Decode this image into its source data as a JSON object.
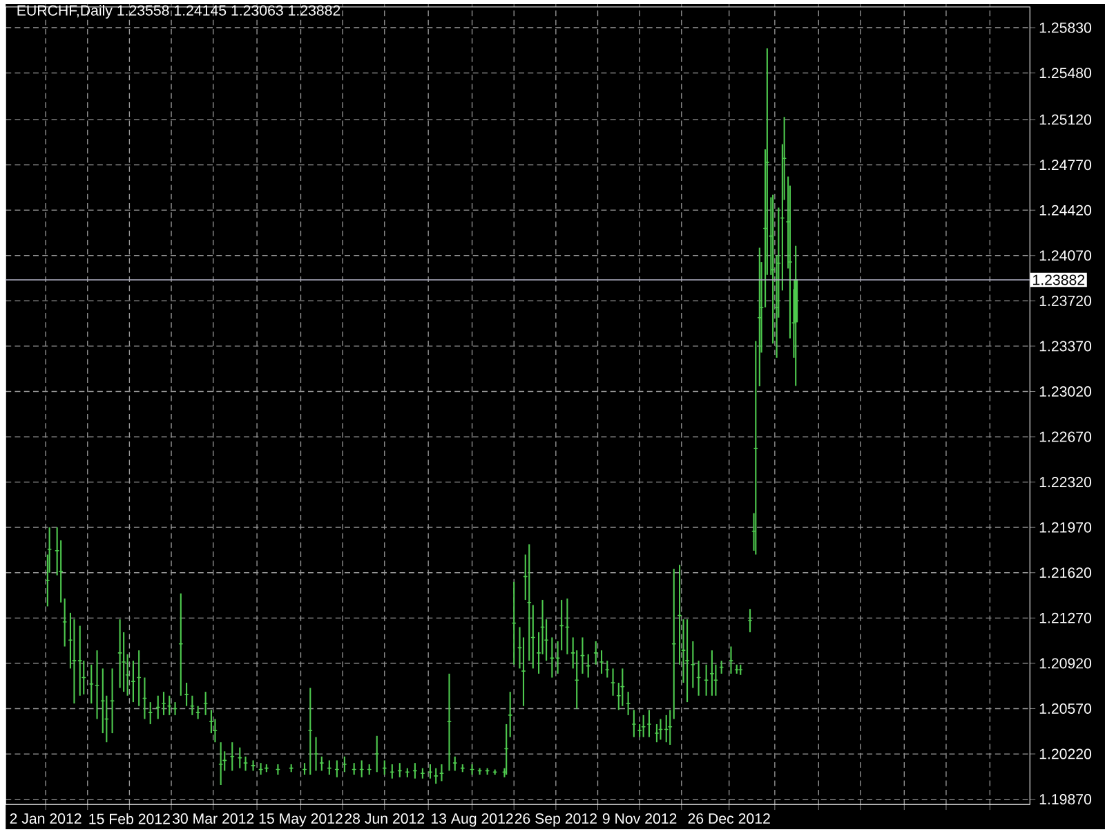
{
  "chart_data": {
    "type": "candlestick",
    "title": "EURCHF,Daily 1.23558 1.24145 1.23063 1.23882",
    "color": "#4ec94e",
    "x": [
      "2012-01-03",
      "2012-01-04",
      "2012-01-08",
      "2012-01-10",
      "2012-01-12",
      "2012-01-15",
      "2012-01-17",
      "2012-01-20",
      "2012-01-22",
      "2012-01-26",
      "2012-01-29",
      "2012-02-01",
      "2012-02-03",
      "2012-02-06",
      "2012-02-10",
      "2012-02-12",
      "2012-02-14",
      "2012-02-17",
      "2012-02-20",
      "2012-02-23",
      "2012-02-26",
      "2012-03-01",
      "2012-03-04",
      "2012-03-07",
      "2012-03-10",
      "2012-03-13",
      "2012-03-16",
      "2012-03-19",
      "2012-03-22",
      "2012-03-26",
      "2012-03-29",
      "2012-03-31",
      "2012-04-03",
      "2012-04-05",
      "2012-04-09",
      "2012-04-13",
      "2012-04-16",
      "2012-04-20",
      "2012-04-24",
      "2012-04-27",
      "2012-05-03",
      "2012-05-10",
      "2012-05-17",
      "2012-05-20",
      "2012-05-23",
      "2012-05-26",
      "2012-05-30",
      "2012-06-03",
      "2012-06-07",
      "2012-06-12",
      "2012-06-16",
      "2012-06-20",
      "2012-06-24",
      "2012-06-28",
      "2012-07-02",
      "2012-07-06",
      "2012-07-10",
      "2012-07-14",
      "2012-07-18",
      "2012-07-22",
      "2012-07-25",
      "2012-07-28",
      "2012-08-01",
      "2012-08-04",
      "2012-08-08",
      "2012-08-13",
      "2012-08-17",
      "2012-08-21",
      "2012-08-25",
      "2012-08-30",
      "2012-08-31",
      "2012-09-02",
      "2012-09-04",
      "2012-09-07",
      "2012-09-09",
      "2012-09-10",
      "2012-09-12",
      "2012-09-14",
      "2012-09-17",
      "2012-09-19",
      "2012-09-21",
      "2012-09-24",
      "2012-09-27",
      "2012-09-29",
      "2012-10-02",
      "2012-10-05",
      "2012-10-07",
      "2012-10-10",
      "2012-10-13",
      "2012-10-17",
      "2012-10-20",
      "2012-10-23",
      "2012-10-26",
      "2012-10-29",
      "2012-10-31",
      "2012-11-03",
      "2012-11-06",
      "2012-11-09",
      "2012-11-11",
      "2012-11-14",
      "2012-11-18",
      "2012-11-20",
      "2012-11-23",
      "2012-11-25",
      "2012-11-27",
      "2012-11-30",
      "2012-12-02",
      "2012-12-04",
      "2012-12-07",
      "2012-12-10",
      "2012-12-14",
      "2012-12-17",
      "2012-12-19",
      "2012-12-22",
      "2012-12-27",
      "2012-12-30",
      "2013-01-01",
      "2013-01-06",
      "2013-01-08",
      "2013-01-09",
      "2013-01-11",
      "2013-01-12",
      "2013-01-14",
      "2013-01-15",
      "2013-01-17",
      "2013-01-18",
      "2013-01-20",
      "2013-01-21",
      "2013-01-23",
      "2013-01-24",
      "2013-01-26",
      "2013-01-27",
      "2013-01-29",
      "2013-01-30"
    ],
    "ohlc": [
      [
        1.2156,
        1.2176,
        1.2136,
        1.2156
      ],
      [
        1.218,
        1.2197,
        1.2162,
        1.218
      ],
      [
        1.2179,
        1.2197,
        1.216,
        1.2179
      ],
      [
        1.2163,
        1.2187,
        1.2139,
        1.2163
      ],
      [
        1.2124,
        1.2142,
        1.2105,
        1.2124
      ],
      [
        1.211,
        1.2131,
        1.2088,
        1.211
      ],
      [
        1.2094,
        1.2126,
        1.2061,
        1.2094
      ],
      [
        1.2094,
        1.2121,
        1.2067,
        1.2094
      ],
      [
        1.2081,
        1.2094,
        1.2068,
        1.2081
      ],
      [
        1.2076,
        1.2091,
        1.2061,
        1.2076
      ],
      [
        1.2075,
        1.2102,
        1.2049,
        1.2075
      ],
      [
        1.2063,
        1.2088,
        1.2038,
        1.2063
      ],
      [
        1.2049,
        1.2067,
        1.2031,
        1.2049
      ],
      [
        1.2063,
        1.2088,
        1.2038,
        1.2063
      ],
      [
        1.21,
        1.2126,
        1.2073,
        1.21
      ],
      [
        1.2093,
        1.2116,
        1.207,
        1.2093
      ],
      [
        1.2083,
        1.2099,
        1.2067,
        1.2083
      ],
      [
        1.2078,
        1.2094,
        1.2062,
        1.2078
      ],
      [
        1.2081,
        1.2102,
        1.2059,
        1.2081
      ],
      [
        1.2065,
        1.2081,
        1.2049,
        1.2065
      ],
      [
        1.2054,
        1.2062,
        1.2045,
        1.2054
      ],
      [
        1.2058,
        1.2067,
        1.2049,
        1.2058
      ],
      [
        1.2061,
        1.207,
        1.2052,
        1.2061
      ],
      [
        1.2059,
        1.2067,
        1.2052,
        1.2059
      ],
      [
        1.2057,
        1.2062,
        1.2052,
        1.2057
      ],
      [
        1.2107,
        1.2146,
        1.2067,
        1.2107
      ],
      [
        1.2068,
        1.2077,
        1.2059,
        1.2068
      ],
      [
        1.2059,
        1.2067,
        1.2052,
        1.2059
      ],
      [
        1.2054,
        1.2059,
        1.2049,
        1.2054
      ],
      [
        1.2061,
        1.207,
        1.2052,
        1.2061
      ],
      [
        1.2047,
        1.2056,
        1.2038,
        1.2047
      ],
      [
        1.204,
        1.2049,
        1.2031,
        1.204
      ],
      [
        1.2014,
        1.2031,
        1.1998,
        1.2014
      ],
      [
        1.2017,
        1.2024,
        1.2009,
        1.2017
      ],
      [
        1.202,
        1.2031,
        1.2009,
        1.202
      ],
      [
        1.2019,
        1.2027,
        1.2011,
        1.2019
      ],
      [
        1.2015,
        1.202,
        1.2009,
        1.2015
      ],
      [
        1.2013,
        1.2017,
        1.2009,
        1.2013
      ],
      [
        1.201,
        1.2015,
        1.2006,
        1.201
      ],
      [
        1.2011,
        1.2014,
        1.2008,
        1.2011
      ],
      [
        1.201,
        1.2014,
        1.2006,
        1.201
      ],
      [
        1.2011,
        1.2014,
        1.2008,
        1.2011
      ],
      [
        1.201,
        1.2015,
        1.2006,
        1.201
      ],
      [
        1.204,
        1.2073,
        1.2006,
        1.204
      ],
      [
        1.2022,
        1.2035,
        1.2009,
        1.2022
      ],
      [
        1.2015,
        1.202,
        1.2009,
        1.2015
      ],
      [
        1.2011,
        1.2017,
        1.2006,
        1.2011
      ],
      [
        1.201,
        1.2017,
        1.2004,
        1.201
      ],
      [
        1.2014,
        1.202,
        1.2008,
        1.2014
      ],
      [
        1.201,
        1.2015,
        1.2006,
        1.201
      ],
      [
        1.201,
        1.2017,
        1.2004,
        1.201
      ],
      [
        1.201,
        1.2014,
        1.2006,
        1.201
      ],
      [
        1.2022,
        1.2036,
        1.2008,
        1.2022
      ],
      [
        1.2011,
        1.2017,
        1.2006,
        1.2011
      ],
      [
        1.2008,
        1.2014,
        1.2003,
        1.2008
      ],
      [
        1.2009,
        1.2015,
        1.2004,
        1.2009
      ],
      [
        1.2008,
        1.2011,
        1.2004,
        1.2008
      ],
      [
        1.2009,
        1.2015,
        1.2003,
        1.2009
      ],
      [
        1.2007,
        1.2011,
        1.2003,
        1.2007
      ],
      [
        1.2008,
        1.2014,
        1.2003,
        1.2008
      ],
      [
        1.2005,
        1.2011,
        1.1999,
        1.2005
      ],
      [
        1.2007,
        1.2014,
        1.2001,
        1.2007
      ],
      [
        1.2047,
        1.2084,
        1.2009,
        1.2047
      ],
      [
        1.2015,
        1.202,
        1.2009,
        1.2015
      ],
      [
        1.2011,
        1.2014,
        1.2008,
        1.2011
      ],
      [
        1.201,
        1.2014,
        1.2006,
        1.201
      ],
      [
        1.2009,
        1.2011,
        1.2006,
        1.2009
      ],
      [
        1.2009,
        1.2011,
        1.2006,
        1.2009
      ],
      [
        1.2008,
        1.201,
        1.2006,
        1.2008
      ],
      [
        1.2008,
        1.2011,
        1.2004,
        1.2008
      ],
      [
        1.2026,
        1.2045,
        1.2006,
        1.2026
      ],
      [
        1.2052,
        1.207,
        1.2035,
        1.2052
      ],
      [
        1.2123,
        1.2155,
        1.2091,
        1.2123
      ],
      [
        1.2104,
        1.212,
        1.2088,
        1.2104
      ],
      [
        1.2086,
        1.2112,
        1.2059,
        1.2086
      ],
      [
        1.2159,
        1.2176,
        1.2141,
        1.2159
      ],
      [
        1.2139,
        1.2184,
        1.2094,
        1.2139
      ],
      [
        1.2112,
        1.2137,
        1.2088,
        1.2112
      ],
      [
        1.21,
        1.2116,
        1.2084,
        1.21
      ],
      [
        1.212,
        1.2141,
        1.2099,
        1.212
      ],
      [
        1.211,
        1.2126,
        1.2094,
        1.211
      ],
      [
        1.2096,
        1.2112,
        1.2081,
        1.2096
      ],
      [
        1.2096,
        1.2109,
        1.2084,
        1.2096
      ],
      [
        1.2121,
        1.2141,
        1.2102,
        1.2121
      ],
      [
        1.212,
        1.2142,
        1.2099,
        1.212
      ],
      [
        1.21,
        1.2112,
        1.2088,
        1.21
      ],
      [
        1.2079,
        1.2102,
        1.2057,
        1.2079
      ],
      [
        1.2098,
        1.2112,
        1.2084,
        1.2098
      ],
      [
        1.209,
        1.2099,
        1.2081,
        1.209
      ],
      [
        1.21,
        1.2109,
        1.2091,
        1.21
      ],
      [
        1.2093,
        1.2102,
        1.2084,
        1.2093
      ],
      [
        1.2087,
        1.2094,
        1.2081,
        1.2087
      ],
      [
        1.2077,
        1.2088,
        1.2067,
        1.2077
      ],
      [
        1.2067,
        1.2077,
        1.2056,
        1.2067
      ],
      [
        1.2074,
        1.2088,
        1.2059,
        1.2074
      ],
      [
        1.2061,
        1.207,
        1.2052,
        1.2061
      ],
      [
        1.2045,
        1.2056,
        1.2035,
        1.2045
      ],
      [
        1.204,
        1.2045,
        1.2035,
        1.204
      ],
      [
        1.2043,
        1.2052,
        1.2035,
        1.2043
      ],
      [
        1.2045,
        1.2056,
        1.2035,
        1.2045
      ],
      [
        1.2038,
        1.2045,
        1.2031,
        1.2038
      ],
      [
        1.2041,
        1.2049,
        1.2033,
        1.2041
      ],
      [
        1.2041,
        1.2052,
        1.2031,
        1.2041
      ],
      [
        1.2043,
        1.2056,
        1.2029,
        1.2043
      ],
      [
        1.2107,
        1.2165,
        1.2049,
        1.2107
      ],
      [
        1.2129,
        1.2168,
        1.2091,
        1.2129
      ],
      [
        1.2102,
        1.2126,
        1.2077,
        1.2102
      ],
      [
        1.2094,
        1.2126,
        1.2062,
        1.2094
      ],
      [
        1.2091,
        1.2109,
        1.2073,
        1.2091
      ],
      [
        1.2081,
        1.2094,
        1.2067,
        1.2081
      ],
      [
        1.2079,
        1.2091,
        1.2067,
        1.2079
      ],
      [
        1.2084,
        1.2102,
        1.2067,
        1.2084
      ],
      [
        1.2079,
        1.2091,
        1.2067,
        1.2079
      ],
      [
        1.2089,
        1.2094,
        1.2084,
        1.2089
      ],
      [
        1.2094,
        1.2105,
        1.2084,
        1.2094
      ],
      [
        1.2087,
        1.2091,
        1.2084,
        1.2087
      ],
      [
        1.2087,
        1.2091,
        1.2083,
        1.2087
      ],
      [
        1.2125,
        1.2134,
        1.2116,
        1.2125
      ],
      [
        1.2194,
        1.2208,
        1.2179,
        1.2194
      ],
      [
        1.2258,
        1.2341,
        1.2176,
        1.2258
      ],
      [
        1.2359,
        1.2413,
        1.2306,
        1.2359
      ],
      [
        1.2367,
        1.2402,
        1.2332,
        1.2367
      ],
      [
        1.2428,
        1.2489,
        1.2367,
        1.2428
      ],
      [
        1.2479,
        1.2567,
        1.2392,
        1.2479
      ],
      [
        1.2422,
        1.2452,
        1.2392,
        1.2422
      ],
      [
        1.2396,
        1.2454,
        1.2339,
        1.2396
      ],
      [
        1.2367,
        1.2407,
        1.2328,
        1.2367
      ],
      [
        1.2401,
        1.2444,
        1.2359,
        1.2401
      ],
      [
        1.2436,
        1.2493,
        1.238,
        1.2436
      ],
      [
        1.2482,
        1.2514,
        1.245,
        1.2482
      ],
      [
        1.2433,
        1.2468,
        1.2397,
        1.2433
      ],
      [
        1.2402,
        1.2461,
        1.2343,
        1.2402
      ],
      [
        1.2355,
        1.2381,
        1.2328,
        1.2355
      ],
      [
        1.23558,
        1.24145,
        1.23063,
        1.23882
      ]
    ],
    "xlim": [
      "2011-12-12",
      "2013-06-02"
    ],
    "xticks": [
      {
        "value": "2012-01-02",
        "label": "2 Jan 2012"
      },
      {
        "value": "2012-01-24",
        "label": null
      },
      {
        "value": "2012-02-15",
        "label": "15 Feb 2012"
      },
      {
        "value": "2012-03-08",
        "label": null
      },
      {
        "value": "2012-03-30",
        "label": "30 Mar 2012"
      },
      {
        "value": "2012-04-22",
        "label": null
      },
      {
        "value": "2012-05-15",
        "label": "15 May 2012"
      },
      {
        "value": "2012-06-06",
        "label": null
      },
      {
        "value": "2012-06-28",
        "label": "28 Jun 2012"
      },
      {
        "value": "2012-07-21",
        "label": null
      },
      {
        "value": "2012-08-13",
        "label": "13 Aug 2012"
      },
      {
        "value": "2012-09-04",
        "label": null
      },
      {
        "value": "2012-09-26",
        "label": "26 Sep 2012"
      },
      {
        "value": "2012-10-18",
        "label": null
      },
      {
        "value": "2012-11-09",
        "label": "9 Nov 2012"
      },
      {
        "value": "2012-12-01",
        "label": null
      },
      {
        "value": "2012-12-26",
        "label": "26 Dec 2012"
      },
      {
        "value": "2013-01-19",
        "label": null
      },
      {
        "value": "2013-02-11",
        "label": null
      },
      {
        "value": "2013-03-05",
        "label": null
      },
      {
        "value": "2013-03-28",
        "label": null
      },
      {
        "value": "2013-04-19",
        "label": null
      },
      {
        "value": "2013-05-12",
        "label": null
      }
    ],
    "ylim": [
      1.1983,
      1.2599
    ],
    "yticks": [
      {
        "value": 1.1987,
        "label": "1.19870"
      },
      {
        "value": 1.2022,
        "label": "1.20220"
      },
      {
        "value": 1.2057,
        "label": "1.20570"
      },
      {
        "value": 1.2092,
        "label": "1.20920"
      },
      {
        "value": 1.2127,
        "label": "1.21270"
      },
      {
        "value": 1.2162,
        "label": "1.21620"
      },
      {
        "value": 1.2197,
        "label": "1.21970"
      },
      {
        "value": 1.2232,
        "label": "1.22320"
      },
      {
        "value": 1.2267,
        "label": "1.22670"
      },
      {
        "value": 1.2302,
        "label": "1.23020"
      },
      {
        "value": 1.2337,
        "label": "1.23370"
      },
      {
        "value": 1.2372,
        "label": "1.23720"
      },
      {
        "value": 1.2407,
        "label": "1.24070"
      },
      {
        "value": 1.2442,
        "label": "1.24420"
      },
      {
        "value": 1.2477,
        "label": "1.24770"
      },
      {
        "value": 1.2512,
        "label": "1.25120"
      },
      {
        "value": 1.2548,
        "label": "1.25480"
      },
      {
        "value": 1.2583,
        "label": "1.25830"
      }
    ],
    "grid": true,
    "ref_lines": [
      {
        "axis": "y",
        "value": 1.23882,
        "label": "1.23882",
        "color": "#b4b4c8"
      }
    ]
  }
}
